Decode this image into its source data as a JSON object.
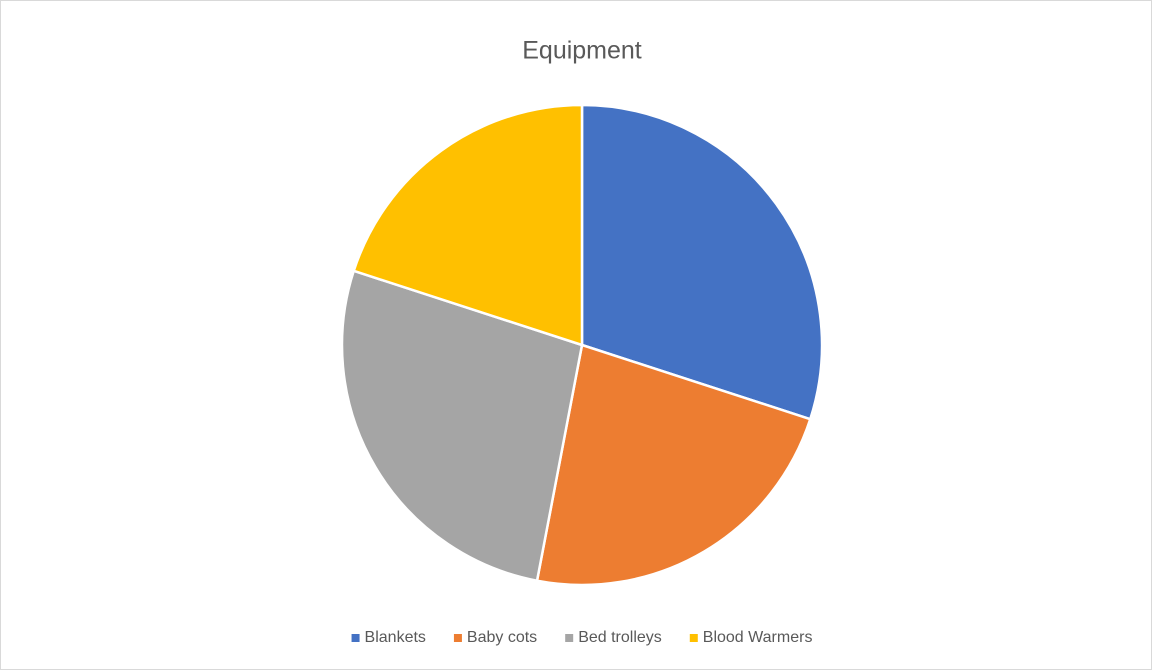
{
  "chart_data": {
    "type": "pie",
    "title": "Equipment",
    "categories": [
      "Blankets",
      "Baby cots",
      "Bed trolleys",
      "Blood Warmers"
    ],
    "values": [
      30,
      23,
      27,
      20
    ],
    "colors": [
      "#4472c4",
      "#ed7d31",
      "#a5a5a5",
      "#ffc000"
    ],
    "legend": "bottom"
  }
}
